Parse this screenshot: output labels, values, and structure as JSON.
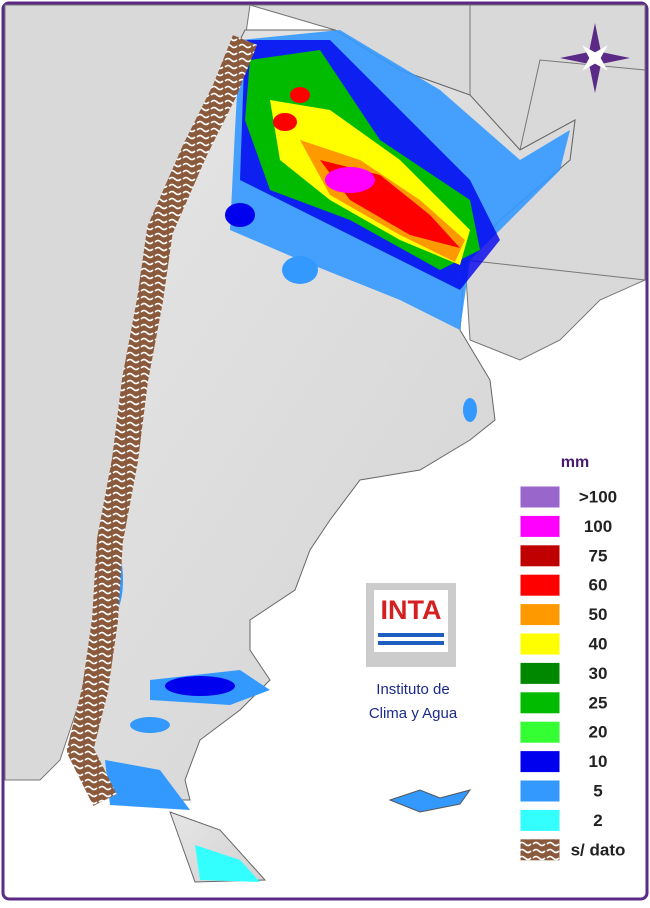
{
  "legend": {
    "unit": "mm",
    "items": [
      {
        "label": ">100",
        "color": "#9966cc"
      },
      {
        "label": "100",
        "color": "#ff00ff"
      },
      {
        "label": "75",
        "color": "#c00000"
      },
      {
        "label": "60",
        "color": "#ff0000"
      },
      {
        "label": "50",
        "color": "#ff9900"
      },
      {
        "label": "40",
        "color": "#ffff00"
      },
      {
        "label": "30",
        "color": "#008800"
      },
      {
        "label": "25",
        "color": "#00bb00"
      },
      {
        "label": "20",
        "color": "#33ff33"
      },
      {
        "label": "10",
        "color": "#0000ee"
      },
      {
        "label": "5",
        "color": "#3399ff"
      },
      {
        "label": "2",
        "color": "#33ffff"
      },
      {
        "label": "s/ dato",
        "color": "#8b5a3c"
      }
    ]
  },
  "logo": {
    "acronym": "INTA",
    "line1": "Instituto de",
    "line2": "Clima y Agua"
  }
}
